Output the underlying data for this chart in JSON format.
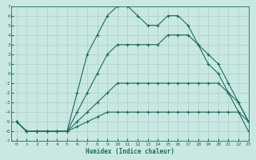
{
  "xlabel": "Humidex (Indice chaleur)",
  "xlim": [
    -0.5,
    23
  ],
  "ylim": [
    -7,
    7
  ],
  "xticks": [
    0,
    1,
    2,
    3,
    4,
    5,
    6,
    7,
    8,
    9,
    10,
    11,
    12,
    13,
    14,
    15,
    16,
    17,
    18,
    19,
    20,
    21,
    22,
    23
  ],
  "yticks": [
    -7,
    -6,
    -5,
    -4,
    -3,
    -2,
    -1,
    0,
    1,
    2,
    3,
    4,
    5,
    6,
    7
  ],
  "bg_color": "#c9e8e2",
  "grid_color": "#aacfc8",
  "line_color": "#1c6b62",
  "line_width": 0.8,
  "marker": "+",
  "markersize": 3,
  "markeredgewidth": 0.8,
  "series": [
    {
      "x": [
        0,
        1,
        2,
        3,
        4,
        5,
        6,
        7,
        8,
        9,
        10,
        11,
        12,
        13,
        14,
        15,
        16,
        17,
        18,
        19,
        20,
        21,
        22,
        23
      ],
      "y": [
        -5,
        -6,
        -6,
        -6,
        -6,
        -6,
        -5.5,
        -5,
        -4.5,
        -4,
        -4,
        -4,
        -4,
        -4,
        -4,
        -4,
        -4,
        -4,
        -4,
        -4,
        -4,
        -4,
        -4,
        -5
      ]
    },
    {
      "x": [
        0,
        1,
        2,
        3,
        4,
        5,
        6,
        7,
        8,
        9,
        10,
        11,
        12,
        13,
        14,
        15,
        16,
        17,
        18,
        19,
        20,
        21,
        22,
        23
      ],
      "y": [
        -5,
        -6,
        -6,
        -6,
        -6,
        -6,
        -5,
        -4,
        -3,
        -2,
        -1,
        -1,
        -1,
        -1,
        -1,
        -1,
        -1,
        -1,
        -1,
        -1,
        -1,
        -2,
        -3,
        -5
      ]
    },
    {
      "x": [
        0,
        1,
        2,
        3,
        4,
        5,
        6,
        7,
        8,
        9,
        10,
        11,
        12,
        13,
        14,
        15,
        16,
        17,
        18,
        19,
        20,
        21,
        22,
        23
      ],
      "y": [
        -5,
        -6,
        -6,
        -6,
        -6,
        -6,
        -4,
        -2,
        0,
        2,
        3,
        3,
        3,
        3,
        3,
        4,
        4,
        4,
        3,
        2,
        1,
        -1,
        -3,
        -5
      ]
    },
    {
      "x": [
        0,
        1,
        2,
        3,
        4,
        5,
        6,
        7,
        8,
        9,
        10,
        11,
        12,
        13,
        14,
        15,
        16,
        17,
        18,
        19,
        20,
        21,
        22,
        23
      ],
      "y": [
        -5,
        -6,
        -6,
        -6,
        -6,
        -6,
        -2,
        2,
        4,
        6,
        7,
        7,
        6,
        5,
        5,
        6,
        6,
        5,
        3,
        1,
        0,
        -2,
        -4,
        -6
      ]
    }
  ]
}
